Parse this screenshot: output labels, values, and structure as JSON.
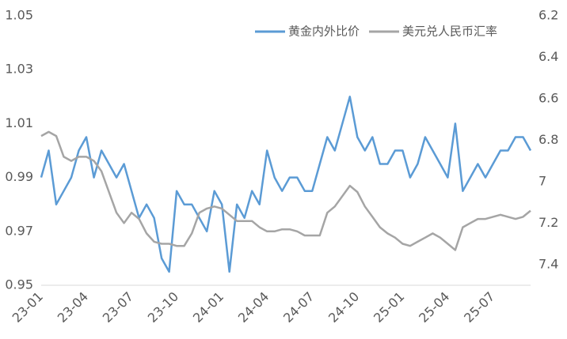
{
  "chart_data": {
    "type": "line",
    "categories": [
      "23-01",
      null,
      null,
      null,
      null,
      null,
      "23-04",
      null,
      null,
      null,
      null,
      null,
      "23-07",
      null,
      null,
      null,
      null,
      null,
      "23-10",
      null,
      null,
      null,
      null,
      null,
      "24-01",
      null,
      null,
      null,
      null,
      null,
      "24-04",
      null,
      null,
      null,
      null,
      null,
      "24-07",
      null,
      null,
      null,
      null,
      null,
      "24-10",
      null,
      null,
      null,
      null,
      null,
      "25-01",
      null,
      null,
      null,
      null,
      null,
      "25-04",
      null,
      null,
      null,
      null,
      null,
      "25-07",
      null,
      null,
      null,
      null,
      null
    ],
    "series": [
      {
        "name": "黄金内外比价",
        "color": "#5b9bd5",
        "values": [
          0.99,
          1.0,
          0.98,
          0.985,
          0.99,
          1.0,
          1.005,
          0.99,
          1.0,
          0.995,
          0.99,
          0.995,
          0.985,
          0.975,
          0.98,
          0.975,
          0.96,
          0.955,
          0.985,
          0.98,
          0.98,
          0.975,
          0.97,
          0.985,
          0.98,
          0.955,
          0.98,
          0.975,
          0.985,
          0.98,
          1.0,
          0.99,
          0.985,
          0.99,
          0.99,
          0.985,
          0.985,
          0.995,
          1.005,
          1.0,
          1.01,
          1.02,
          1.005,
          1.0,
          1.005,
          0.995,
          0.995,
          1.0,
          1.0,
          0.99,
          0.995,
          1.005,
          1.0,
          0.995,
          0.99,
          1.01,
          0.985,
          0.99,
          0.995,
          0.99,
          0.995,
          1.0,
          1.0,
          1.005,
          1.005,
          1.0
        ]
      },
      {
        "name": "美元兑人民币汇率",
        "color": "#a5a5a5",
        "axis": "y2",
        "values": [
          6.78,
          6.76,
          6.78,
          6.88,
          6.9,
          6.88,
          6.88,
          6.9,
          6.95,
          7.05,
          7.15,
          7.2,
          7.15,
          7.18,
          7.25,
          7.29,
          7.3,
          7.3,
          7.31,
          7.31,
          7.25,
          7.15,
          7.13,
          7.12,
          7.13,
          7.16,
          7.19,
          7.19,
          7.19,
          7.22,
          7.24,
          7.24,
          7.23,
          7.23,
          7.24,
          7.26,
          7.26,
          7.26,
          7.15,
          7.12,
          7.07,
          7.02,
          7.05,
          7.12,
          7.17,
          7.22,
          7.25,
          7.27,
          7.3,
          7.31,
          7.29,
          7.27,
          7.25,
          7.27,
          7.3,
          7.33,
          7.22,
          7.2,
          7.18,
          7.18,
          7.17,
          7.16,
          7.17,
          7.18,
          7.17,
          7.14
        ]
      }
    ],
    "ylim": [
      0.95,
      1.05
    ],
    "yticks": [
      0.95,
      0.97,
      0.99,
      1.01,
      1.03,
      1.05
    ],
    "y2lim": [
      7.5,
      6.2
    ],
    "y2ticks": [
      6.2,
      6.4,
      6.6,
      6.8,
      7,
      7.2,
      7.4
    ],
    "legend": "top-right"
  }
}
